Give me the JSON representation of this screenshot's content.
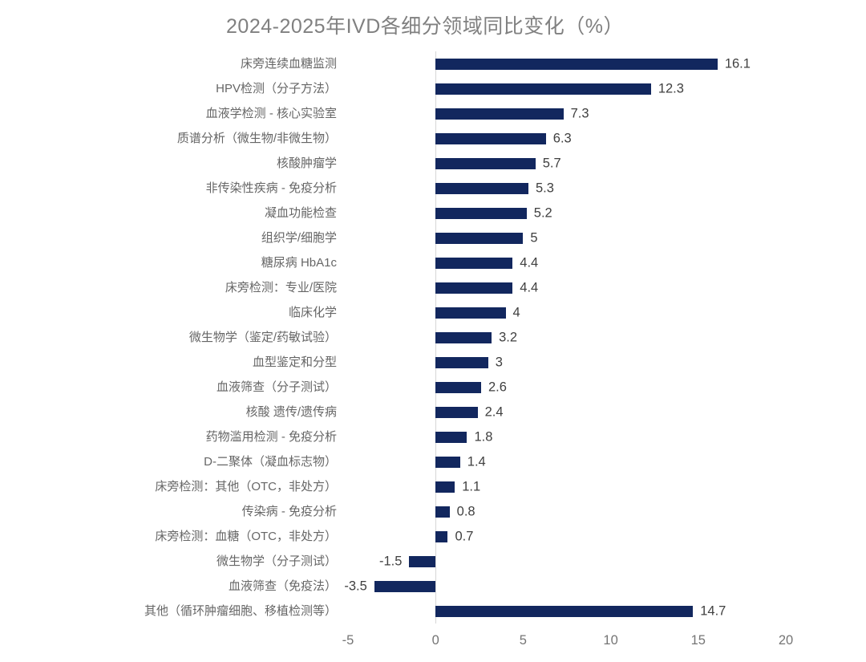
{
  "title": "2024-2025年IVD各细分领域同比变化（%）",
  "chart_data": {
    "type": "bar",
    "orientation": "horizontal",
    "title": "2024-2025年IVD各细分领域同比变化（%）",
    "categories": [
      "床旁连续血糖监测",
      "HPV检测（分子方法）",
      "血液学检测 - 核心实验室",
      "质谱分析（微生物/非微生物）",
      "核酸肿瘤学",
      "非传染性疾病 - 免疫分析",
      "凝血功能检查",
      "组织学/细胞学",
      "糖尿病 HbA1c",
      "床旁检测：专业/医院",
      "临床化学",
      "微生物学（鉴定/药敏试验）",
      "血型鉴定和分型",
      "血液筛查（分子测试）",
      "核酸 遗传/遗传病",
      "药物滥用检测 - 免疫分析",
      "D-二聚体（凝血标志物）",
      "床旁检测：其他（OTC，非处方）",
      "传染病 - 免疫分析",
      "床旁检测：血糖（OTC，非处方）",
      "微生物学（分子测试）",
      "血液筛查（免疫法）",
      "其他（循环肿瘤细胞、移植检测等）"
    ],
    "values": [
      16.1,
      12.3,
      7.3,
      6.3,
      5.7,
      5.3,
      5.2,
      5,
      4.4,
      4.4,
      4,
      3.2,
      3,
      2.6,
      2.4,
      1.8,
      1.4,
      1.1,
      0.8,
      0.7,
      -1.5,
      -3.5,
      14.7
    ],
    "value_labels": [
      "16.1",
      "12.3",
      "7.3",
      "6.3",
      "5.7",
      "5.3",
      "5.2",
      "5",
      "4.4",
      "4.4",
      "4",
      "3.2",
      "3",
      "2.6",
      "2.4",
      "1.8",
      "1.4",
      "1.1",
      "0.8",
      "0.7",
      "-1.5",
      "-3.5",
      "14.7"
    ],
    "xlabel": "",
    "ylabel": "",
    "xlim": [
      -5,
      20
    ],
    "xticks": [
      -5,
      0,
      5,
      10,
      15,
      20
    ],
    "xtick_labels": [
      "-5",
      "0",
      "5",
      "10",
      "15",
      "20"
    ],
    "grid": "off",
    "legend": "none",
    "bar_color": "#12275e"
  },
  "colors": {
    "background": "#ffffff",
    "title_text": "#808080",
    "category_text": "#666666",
    "value_text": "#404040",
    "tick_text": "#757575",
    "axis_line": "#d6d6d6"
  }
}
